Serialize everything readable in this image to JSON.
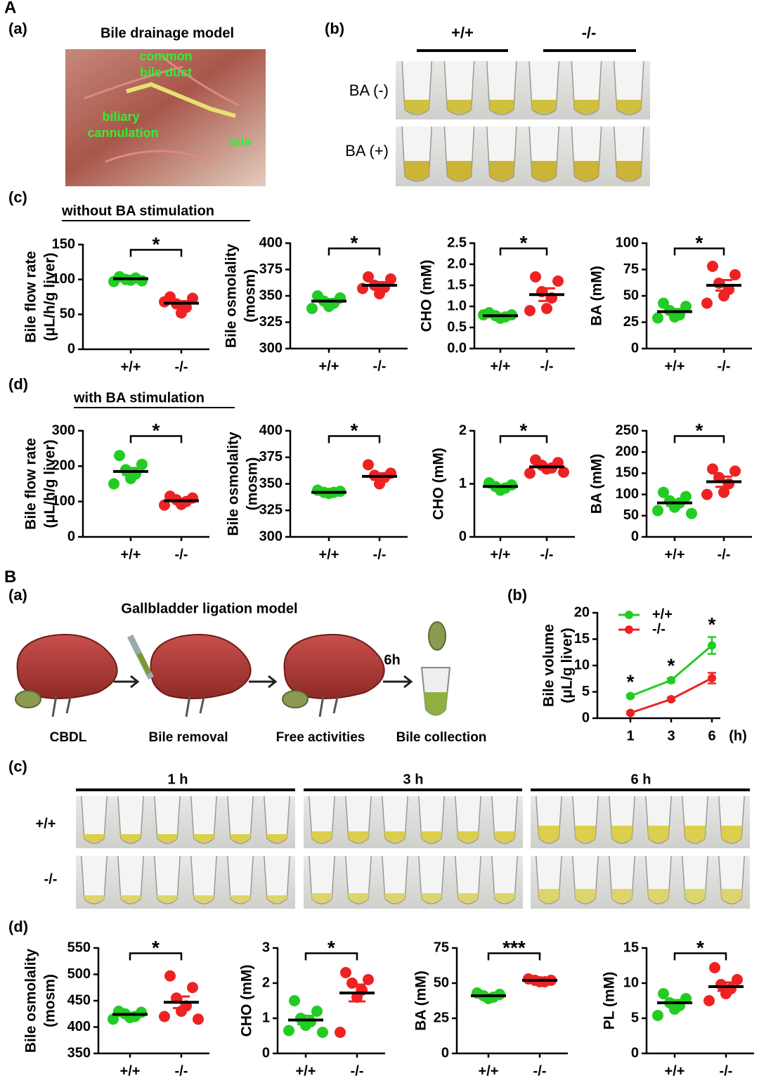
{
  "panel_A": {
    "letter": "A",
    "a": {
      "label": "(a)",
      "title": "Bile drainage model",
      "photo_labels": [
        "common",
        "bile duct",
        "biliary",
        "cannulation",
        "bile"
      ]
    },
    "b": {
      "label": "(b)",
      "groups": [
        "+/+",
        "-/-"
      ],
      "rows": [
        "BA (-)",
        "BA (+)"
      ]
    },
    "c": {
      "label": "(c)",
      "heading": "without  BA stimulation"
    },
    "d": {
      "label": "(d)",
      "heading": "with  BA stimulation"
    }
  },
  "panel_B": {
    "letter": "B",
    "a": {
      "label": "(a)",
      "title": "Gallbladder ligation model",
      "steps": [
        "CBDL",
        "Bile removal",
        "Free activities",
        "Bile collection"
      ],
      "time": "6h"
    },
    "b": {
      "label": "(b)"
    },
    "c": {
      "label": "(c)",
      "times": [
        "1 h",
        "3 h",
        "6 h"
      ],
      "rows": [
        "+/+",
        "-/-"
      ]
    },
    "d": {
      "label": "(d)"
    }
  },
  "chart_data": [
    {
      "type": "dotplot",
      "ylabel": [
        "Bile flow rate",
        "(μL/h/g liver)"
      ],
      "ylim": [
        0,
        150
      ],
      "yticks": [
        0,
        50,
        100,
        150
      ],
      "categories": [
        "+/+",
        "-/-"
      ],
      "significance": "*",
      "groups": [
        {
          "color": "#22cc22",
          "values": [
            104,
            98,
            100,
            102,
            99,
            97
          ],
          "mean": 101,
          "sem": 2
        },
        {
          "color": "#ee2222",
          "values": [
            75,
            73,
            65,
            60,
            52,
            68
          ],
          "mean": 66,
          "sem": 3
        }
      ]
    },
    {
      "type": "dotplot",
      "ylabel": [
        "Bile osmolality",
        "(mosm)"
      ],
      "ylim": [
        300,
        400
      ],
      "yticks": [
        300,
        325,
        350,
        375,
        400
      ],
      "categories": [
        "+/+",
        "-/-"
      ],
      "significance": "*",
      "groups": [
        {
          "color": "#22cc22",
          "values": [
            350,
            348,
            345,
            343,
            340,
            338
          ],
          "mean": 345,
          "sem": 2
        },
        {
          "color": "#ee2222",
          "values": [
            368,
            366,
            360,
            358,
            352,
            357
          ],
          "mean": 360,
          "sem": 3
        }
      ]
    },
    {
      "type": "dotplot",
      "ylabel": [
        "CHO (mM)"
      ],
      "ylim": [
        0,
        2.5
      ],
      "yticks": [
        {
          "value": 0,
          "label": "0.0"
        },
        0.5,
        {
          "value": 1,
          "label": "1.0"
        },
        1.5,
        {
          "value": 2,
          "label": "2.0"
        },
        2.5
      ],
      "categories": [
        "+/+",
        "-/-"
      ],
      "significance": "*",
      "groups": [
        {
          "color": "#22cc22",
          "values": [
            0.85,
            0.8,
            0.78,
            0.75,
            0.72,
            0.8
          ],
          "mean": 0.78,
          "sem": 0.02
        },
        {
          "color": "#ee2222",
          "values": [
            1.7,
            1.6,
            1.35,
            1.2,
            0.95,
            0.9
          ],
          "mean": 1.28,
          "sem": 0.15
        }
      ]
    },
    {
      "type": "dotplot",
      "ylabel": [
        "BA (mM)"
      ],
      "ylim": [
        0,
        100
      ],
      "yticks": [
        0,
        25,
        50,
        75,
        100
      ],
      "categories": [
        "+/+",
        "-/-"
      ],
      "significance": "*",
      "groups": [
        {
          "color": "#22cc22",
          "values": [
            43,
            40,
            36,
            32,
            30,
            29
          ],
          "mean": 35,
          "sem": 2.5
        },
        {
          "color": "#ee2222",
          "values": [
            78,
            70,
            62,
            56,
            50,
            43
          ],
          "mean": 60,
          "sem": 5
        }
      ]
    },
    {
      "type": "dotplot",
      "ylabel": [
        "Bile flow rate",
        "(μL/h/g liver)"
      ],
      "ylim": [
        0,
        300
      ],
      "yticks": [
        0,
        100,
        200,
        300
      ],
      "categories": [
        "+/+",
        "-/-"
      ],
      "significance": "*",
      "groups": [
        {
          "color": "#22cc22",
          "values": [
            230,
            205,
            190,
            178,
            165,
            150
          ],
          "mean": 185,
          "sem": 10
        },
        {
          "color": "#ee2222",
          "values": [
            115,
            110,
            105,
            100,
            92,
            90
          ],
          "mean": 102,
          "sem": 4
        }
      ]
    },
    {
      "type": "dotplot",
      "ylabel": [
        "Bile osmolality",
        "(mosm)"
      ],
      "ylim": [
        300,
        400
      ],
      "yticks": [
        300,
        325,
        350,
        375,
        400
      ],
      "categories": [
        "+/+",
        "-/-"
      ],
      "significance": "*",
      "groups": [
        {
          "color": "#22cc22",
          "values": [
            344,
            343,
            342,
            342,
            341
          ],
          "mean": 342,
          "sem": 1
        },
        {
          "color": "#ee2222",
          "values": [
            368,
            360,
            358,
            356,
            350
          ],
          "mean": 357,
          "sem": 3
        }
      ]
    },
    {
      "type": "dotplot",
      "ylabel": [
        "CHO (mM)"
      ],
      "ylim": [
        0,
        2
      ],
      "yticks": [
        0,
        1,
        2
      ],
      "categories": [
        "+/+",
        "-/-"
      ],
      "significance": "*",
      "groups": [
        {
          "color": "#22cc22",
          "values": [
            1.02,
            0.98,
            0.95,
            0.92,
            0.88
          ],
          "mean": 0.95,
          "sem": 0.03
        },
        {
          "color": "#ee2222",
          "values": [
            1.45,
            1.4,
            1.35,
            1.3,
            1.28,
            1.2,
            1.22
          ],
          "mean": 1.32,
          "sem": 0.04
        }
      ]
    },
    {
      "type": "dotplot",
      "ylabel": [
        "BA (mM)"
      ],
      "ylim": [
        0,
        250
      ],
      "yticks": [
        0,
        50,
        100,
        150,
        200,
        250
      ],
      "categories": [
        "+/+",
        "-/-"
      ],
      "significance": "*",
      "groups": [
        {
          "color": "#22cc22",
          "values": [
            105,
            95,
            85,
            80,
            70,
            62,
            55
          ],
          "mean": 80,
          "sem": 7
        },
        {
          "color": "#ee2222",
          "values": [
            160,
            155,
            140,
            125,
            105,
            100
          ],
          "mean": 130,
          "sem": 12
        }
      ]
    },
    {
      "type": "line",
      "ylabel": [
        "Bile  volume",
        "(μL/g liver)"
      ],
      "xlabel": "(h)",
      "categories": [
        "1",
        "3",
        "6"
      ],
      "ylim": [
        0,
        20
      ],
      "yticks": [
        0,
        5,
        10,
        15,
        20
      ],
      "significance": [
        "*",
        "*",
        "*"
      ],
      "series": [
        {
          "name": "+/+",
          "color": "#22cc22",
          "values": [
            4.2,
            7.2,
            13.8
          ],
          "errors": [
            0.3,
            0.4,
            1.6
          ]
        },
        {
          "name": "-/-",
          "color": "#ee2222",
          "values": [
            1.0,
            3.6,
            7.6
          ],
          "errors": [
            0.2,
            0.3,
            1.0
          ]
        }
      ]
    },
    {
      "type": "dotplot",
      "ylabel": [
        "Bile osmolality",
        "(mosm)"
      ],
      "ylim": [
        350,
        550
      ],
      "yticks": [
        350,
        400,
        450,
        500,
        550
      ],
      "categories": [
        "+/+",
        "-/-"
      ],
      "significance": "*",
      "groups": [
        {
          "color": "#22cc22",
          "values": [
            430,
            428,
            425,
            420,
            418,
            415
          ],
          "mean": 424,
          "sem": 3
        },
        {
          "color": "#ee2222",
          "values": [
            497,
            475,
            455,
            440,
            430,
            420,
            415
          ],
          "mean": 447,
          "sem": 11
        }
      ]
    },
    {
      "type": "dotplot",
      "ylabel": [
        "CHO (mM)"
      ],
      "ylim": [
        0,
        3
      ],
      "yticks": [
        0,
        1,
        2,
        3
      ],
      "categories": [
        "+/+",
        "-/-"
      ],
      "significance": "*",
      "groups": [
        {
          "color": "#22cc22",
          "values": [
            1.5,
            1.2,
            1.0,
            0.9,
            0.8,
            0.65,
            0.6
          ],
          "mean": 0.95,
          "sem": 0.12
        },
        {
          "color": "#ee2222",
          "values": [
            2.3,
            2.1,
            2.0,
            1.8,
            1.6,
            0.6
          ],
          "mean": 1.72,
          "sem": 0.24
        }
      ]
    },
    {
      "type": "dotplot",
      "ylabel": [
        "BA (mM)"
      ],
      "ylim": [
        0,
        75
      ],
      "yticks": [
        0,
        25,
        50,
        75
      ],
      "categories": [
        "+/+",
        "-/-"
      ],
      "significance": "***",
      "groups": [
        {
          "color": "#22cc22",
          "values": [
            43,
            42,
            41,
            40,
            39
          ],
          "mean": 41,
          "sem": 1
        },
        {
          "color": "#ee2222",
          "values": [
            53,
            52,
            52,
            51,
            51
          ],
          "mean": 52,
          "sem": 0.5
        }
      ]
    },
    {
      "type": "dotplot",
      "ylabel": [
        "PL (mM)"
      ],
      "ylim": [
        0,
        15
      ],
      "yticks": [
        0,
        5,
        10,
        15
      ],
      "categories": [
        "+/+",
        "-/-"
      ],
      "significance": "*",
      "groups": [
        {
          "color": "#22cc22",
          "values": [
            8.5,
            7.8,
            7.2,
            6.8,
            6.3,
            5.4
          ],
          "mean": 7.2,
          "sem": 0.4
        },
        {
          "color": "#ee2222",
          "values": [
            12.2,
            10.5,
            9.8,
            9.2,
            8.5,
            7.5
          ],
          "mean": 9.5,
          "sem": 0.6
        }
      ]
    }
  ]
}
